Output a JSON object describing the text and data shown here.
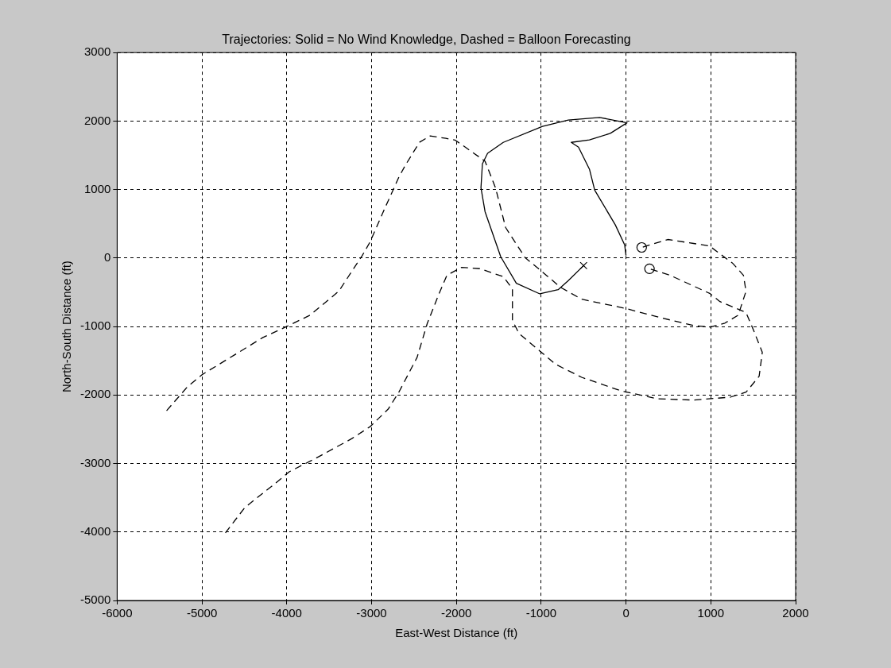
{
  "chart_data": {
    "type": "line",
    "title": "Trajectories: Solid = No Wind Knowledge, Dashed = Balloon Forecasting",
    "xlabel": "East-West Distance (ft)",
    "ylabel": "North-South Distance (ft)",
    "xlim": [
      -6000,
      2000
    ],
    "xticks": [
      -6000,
      -5000,
      -4000,
      -3000,
      -2000,
      -1000,
      0,
      1000,
      2000
    ],
    "ylim": [
      -5000,
      3000
    ],
    "yticks": [
      -5000,
      -4000,
      -3000,
      -2000,
      -1000,
      0,
      1000,
      2000,
      3000
    ],
    "grid": true,
    "marker": "none",
    "series": [
      {
        "line_style": "solid",
        "color": "#000000",
        "x": [
          0,
          -16,
          -126,
          -369,
          -431,
          -560,
          -646,
          -431,
          -185,
          12,
          -311,
          -680,
          -985,
          -1447,
          -1632,
          -1693,
          -1710,
          -1662,
          -1477,
          -1293,
          -1016,
          -800,
          -680,
          -500
        ],
        "values": [
          38,
          193,
          484,
          992,
          1298,
          1620,
          1689,
          1724,
          1821,
          1975,
          2053,
          2015,
          1922,
          1689,
          1530,
          1375,
          1027,
          678,
          19,
          -369,
          -523,
          -462,
          -330,
          -110
        ]
      },
      {
        "line_style": "dashed",
        "color": "#000000",
        "x": [
          -5417,
          -5171,
          -5002,
          -4617,
          -4281,
          -4002,
          -3725,
          -3387,
          -3109,
          -3017,
          -2832,
          -2678,
          -2601,
          -2435,
          -2309,
          -2124,
          -2017,
          -1908,
          -1662,
          -1539,
          -1419,
          -1188,
          -1016,
          -773,
          -523,
          0,
          400,
          797,
          992,
          1166,
          1323,
          1415,
          1385,
          1259,
          982,
          797,
          492,
          185
        ],
        "values": [
          -2229,
          -1880,
          -1706,
          -1415,
          -1160,
          -1000,
          -834,
          -485,
          38,
          236,
          759,
          1181,
          1356,
          1690,
          1783,
          1748,
          1723,
          1631,
          1414,
          1027,
          445,
          3,
          -171,
          -426,
          -601,
          -737,
          -869,
          -985,
          -1008,
          -950,
          -834,
          -485,
          -252,
          -78,
          178,
          213,
          271,
          155
        ]
      },
      {
        "line_style": "dashed",
        "color": "#000000",
        "x": [
          -4723,
          -4495,
          -4097,
          -3971,
          -3663,
          -3232,
          -3017,
          -2804,
          -2678,
          -2463,
          -2342,
          -2204,
          -2112,
          -1939,
          -1724,
          -1447,
          -1339,
          -1339,
          -1262,
          -1016,
          -831,
          -523,
          -62,
          369,
          797,
          1231,
          1416,
          1570,
          1607,
          1508,
          1415,
          1108,
          992,
          520,
          277
        ],
        "values": [
          -4012,
          -3644,
          -3252,
          -3121,
          -2927,
          -2636,
          -2462,
          -2206,
          -1958,
          -1450,
          -950,
          -520,
          -252,
          -136,
          -155,
          -272,
          -450,
          -912,
          -1101,
          -1357,
          -1551,
          -1741,
          -1938,
          -2055,
          -2074,
          -2031,
          -1958,
          -1726,
          -1377,
          -1066,
          -795,
          -636,
          -520,
          -252,
          -156
        ]
      },
      {
        "type": "scatter",
        "marker": "circle",
        "color": "#000000",
        "x": [
          185,
          277
        ],
        "values": [
          155,
          -156
        ]
      },
      {
        "type": "scatter",
        "marker": "cross",
        "color": "#000000",
        "x": [
          -500
        ],
        "values": [
          -110
        ]
      }
    ]
  }
}
